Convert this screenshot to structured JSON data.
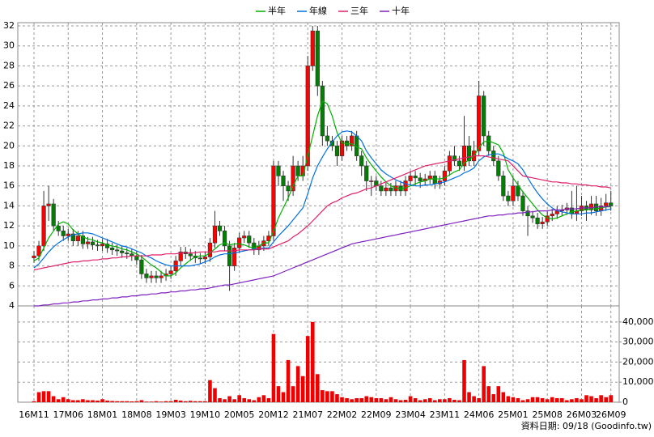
{
  "chart_data": {
    "type": "candlestick",
    "categories": [
      "16M11",
      null,
      null,
      null,
      null,
      null,
      null,
      "17M06",
      null,
      null,
      null,
      null,
      null,
      null,
      "18M01",
      null,
      null,
      null,
      null,
      null,
      null,
      "18M08",
      null,
      null,
      null,
      null,
      null,
      null,
      "19M03",
      null,
      null,
      null,
      null,
      null,
      null,
      "19M10",
      null,
      null,
      null,
      null,
      null,
      null,
      "20M05",
      null,
      null,
      null,
      null,
      null,
      null,
      "20M12",
      null,
      null,
      null,
      null,
      null,
      null,
      "21M07",
      null,
      null,
      null,
      null,
      null,
      null,
      "22M02",
      null,
      null,
      null,
      null,
      null,
      null,
      "22M09",
      null,
      null,
      null,
      null,
      null,
      null,
      "23M04",
      null,
      null,
      null,
      null,
      null,
      null,
      "23M11",
      null,
      null,
      null,
      null,
      null,
      null,
      "24M06",
      null,
      null,
      null,
      null,
      null,
      null,
      "25M01",
      null,
      null,
      null,
      null,
      null,
      null,
      "25M08",
      null,
      null,
      null,
      null,
      null,
      null,
      "26M03",
      null,
      null,
      null,
      null,
      null,
      "26M09"
    ],
    "open": [
      8.8,
      9,
      10,
      14,
      14.2,
      12,
      11.5,
      11,
      11.2,
      10.5,
      11,
      10.2,
      10.4,
      10.1,
      10,
      10.2,
      9.8,
      9.6,
      9.5,
      9.3,
      9.2,
      9,
      8.6,
      7.2,
      6.8,
      7,
      6.8,
      7,
      7.2,
      7.5,
      8.5,
      9.4,
      9.2,
      9,
      8.8,
      8.7,
      8.9,
      10.3,
      12,
      11.5,
      10,
      8,
      9.8,
      10.8,
      11,
      10.3,
      9.6,
      10,
      10.5,
      11,
      18,
      17,
      16,
      15.5,
      18,
      17,
      18,
      28,
      31.5,
      26,
      21,
      20.5,
      20,
      19,
      20.5,
      20,
      21,
      19,
      18,
      16.5,
      16.5,
      16,
      15.5,
      15.8,
      15.5,
      16,
      15.5,
      16.5,
      17,
      16.8,
      16.5,
      16.7,
      17,
      16.2,
      16.5,
      17.5,
      19,
      18.5,
      18,
      20,
      18.5,
      19.5,
      25,
      21,
      19.5,
      18.5,
      17,
      15,
      14.5,
      16,
      15,
      13.5,
      13,
      12.8,
      12.2,
      12.4,
      13,
      13.2,
      13.5,
      13.6,
      13.8,
      13.2,
      13.5,
      14,
      13.6,
      14.2,
      13.5,
      14,
      14.3
    ],
    "high": [
      9.5,
      10.5,
      15.5,
      16,
      14.7,
      12.5,
      12,
      11.7,
      11.7,
      11.5,
      11.5,
      10.9,
      10.9,
      10.6,
      10.7,
      10.7,
      10.3,
      10.1,
      10,
      9.8,
      9.7,
      9.5,
      9.1,
      7.7,
      7.5,
      7.5,
      7.5,
      7.7,
      8,
      9,
      9.9,
      9.9,
      9.7,
      9.5,
      9.3,
      9.4,
      10.8,
      13.5,
      12.5,
      12,
      10.5,
      10.3,
      11.3,
      11.5,
      11.5,
      10.8,
      10.5,
      11,
      11.5,
      18.5,
      18.5,
      17.5,
      16.5,
      19,
      18.5,
      19,
      29,
      32,
      32,
      26.5,
      22,
      21,
      20.5,
      21,
      21,
      21.5,
      21.5,
      19.5,
      18.5,
      17,
      17,
      16.5,
      16.3,
      16.3,
      16.5,
      16.5,
      17,
      17.5,
      17.5,
      17.3,
      17.2,
      17.5,
      17.5,
      17,
      18,
      19.5,
      20,
      19,
      23,
      21,
      20.5,
      26.5,
      25.5,
      21.5,
      20,
      19,
      17.5,
      15.5,
      17,
      16.5,
      15.5,
      14,
      13.5,
      13.3,
      12.9,
      13.5,
      13.7,
      14,
      14.1,
      14.3,
      15.5,
      16,
      15,
      14.5,
      15,
      15,
      14.8,
      15.2,
      15.5
    ],
    "low": [
      8.3,
      8.5,
      9.5,
      12.5,
      11.5,
      11,
      10.5,
      10.5,
      10,
      10,
      9.7,
      9.7,
      9.6,
      9.5,
      9.5,
      9.3,
      9.1,
      9,
      8.8,
      8.7,
      8.5,
      8.1,
      6.7,
      6.3,
      6.3,
      6.3,
      6.3,
      6.5,
      6.7,
      7,
      8,
      8.7,
      8.5,
      8.3,
      8.2,
      8.2,
      8.4,
      9.8,
      11,
      9.5,
      5.5,
      7.5,
      9.3,
      10.3,
      9.8,
      9.1,
      9.1,
      9.5,
      10,
      10.5,
      16,
      14.5,
      14.5,
      15,
      16.5,
      16.5,
      17.5,
      27.5,
      25,
      20,
      20,
      19.5,
      18,
      18.5,
      19.5,
      19.5,
      18.5,
      17,
      15.5,
      15,
      15.5,
      15,
      15,
      15,
      15,
      15,
      15,
      16,
      16,
      15.8,
      16,
      16.2,
      15.7,
      15.7,
      16,
      17,
      18,
      17.5,
      17.5,
      18,
      18,
      19,
      20,
      19,
      18,
      16.5,
      14.5,
      14,
      14,
      14.5,
      13,
      11,
      12.3,
      11.7,
      11.7,
      12,
      12.5,
      12.7,
      13,
      13.1,
      12.7,
      12.5,
      13,
      12.5,
      13.1,
      13,
      13,
      13.5,
      13.5
    ],
    "close": [
      9,
      10,
      14,
      14.2,
      12,
      11.5,
      11,
      11.2,
      10.5,
      11,
      10.2,
      10.4,
      10.1,
      10,
      10.2,
      9.8,
      9.6,
      9.5,
      9.3,
      9.2,
      9,
      8.6,
      7.2,
      6.8,
      7,
      6.8,
      7,
      7.2,
      7.5,
      8.5,
      9.4,
      9.2,
      9,
      8.8,
      8.7,
      8.9,
      10.3,
      12,
      11.5,
      10,
      8,
      9.8,
      10.8,
      11,
      10.3,
      9.6,
      10,
      10.5,
      11,
      18,
      17,
      16,
      15.5,
      18,
      17,
      18,
      28,
      31.5,
      26,
      21,
      20.5,
      20,
      19,
      20.5,
      20,
      21,
      19,
      18,
      16.5,
      16.5,
      16,
      15.5,
      15.8,
      15.5,
      16,
      15.5,
      16.5,
      17,
      16.8,
      16.5,
      16.7,
      17,
      16.2,
      16.5,
      17.5,
      19,
      18.5,
      18,
      20,
      18.5,
      19.5,
      25,
      21,
      19.5,
      18.5,
      17,
      15,
      14.5,
      16,
      15,
      13.5,
      13,
      12.8,
      12.2,
      12.4,
      13,
      13.2,
      13.5,
      13.6,
      13.8,
      13.2,
      13.5,
      14,
      13.6,
      14.2,
      13.5,
      14,
      14.3,
      14
    ],
    "up_color": "#ff0000",
    "down_color": "#008000",
    "series": [
      {
        "name": "半年",
        "color": "#00b000",
        "values": [
          8.5,
          8.8,
          9.8,
          10.8,
          11.5,
          12.2,
          12.4,
          12.2,
          11.6,
          11.2,
          10.9,
          10.7,
          10.6,
          10.4,
          10.3,
          10.1,
          10.0,
          9.9,
          9.7,
          9.6,
          9.4,
          9.2,
          8.9,
          8.5,
          8.1,
          7.8,
          7.4,
          7.0,
          7.0,
          7.3,
          7.8,
          8.2,
          8.6,
          8.9,
          9.0,
          9.0,
          9.3,
          9.7,
          10.1,
          10.3,
          10.1,
          10.2,
          10.2,
          10.1,
          9.9,
          9.8,
          10.0,
          10.3,
          10.3,
          11.5,
          12.8,
          13.8,
          14.8,
          16.0,
          17.0,
          17.0,
          19.0,
          21.0,
          23.0,
          24.5,
          24.2,
          23.0,
          21.3,
          20.3,
          20.2,
          20.2,
          19.9,
          19.7,
          18.8,
          18.1,
          17.5,
          16.9,
          16.4,
          16.0,
          15.8,
          15.7,
          15.8,
          16.0,
          16.2,
          16.4,
          16.5,
          16.7,
          16.7,
          16.7,
          16.8,
          17.1,
          17.4,
          17.6,
          18.3,
          18.6,
          19.0,
          19.8,
          20.4,
          20.5,
          20.3,
          20.1,
          19.3,
          17.6,
          16.8,
          16.1,
          15.4,
          14.8,
          14.2,
          13.6,
          13.1,
          12.8,
          12.7,
          12.8,
          13.0,
          13.2,
          13.4,
          13.5,
          13.6,
          13.6,
          13.7,
          13.7,
          13.8,
          13.9,
          13.9
        ]
      },
      {
        "name": "年線",
        "color": "#0070e0",
        "values": [
          7.8,
          8.2,
          8.8,
          9.4,
          9.9,
          10.3,
          10.6,
          10.9,
          11.1,
          11.2,
          11.3,
          11.3,
          11.2,
          11.0,
          10.8,
          10.6,
          10.4,
          10.2,
          10.0,
          9.9,
          9.7,
          9.5,
          9.3,
          9.0,
          8.8,
          8.5,
          8.3,
          8.1,
          8.0,
          8.0,
          8.0,
          8.0,
          8.0,
          8.1,
          8.2,
          8.4,
          8.6,
          8.9,
          9.1,
          9.2,
          9.2,
          9.3,
          9.4,
          9.5,
          9.6,
          9.7,
          9.7,
          9.8,
          9.8,
          10.4,
          11.0,
          11.5,
          12.0,
          12.6,
          13.2,
          13.8,
          15.2,
          16.8,
          18.0,
          18.9,
          19.7,
          20.4,
          21.0,
          21.4,
          21.5,
          21.4,
          21.0,
          20.5,
          19.5,
          18.8,
          18.2,
          17.6,
          17.2,
          16.9,
          16.6,
          16.4,
          16.2,
          16.1,
          16.0,
          16.0,
          16.1,
          16.1,
          16.2,
          16.3,
          16.4,
          16.6,
          16.8,
          17.0,
          17.3,
          17.5,
          17.8,
          18.5,
          18.9,
          19.1,
          19.2,
          19.2,
          19.0,
          18.7,
          18.5,
          18.2,
          17.6,
          16.8,
          16.0,
          15.3,
          14.7,
          14.2,
          13.8,
          13.5,
          13.4,
          13.3,
          13.2,
          13.2,
          13.2,
          13.3,
          13.3,
          13.4,
          13.5,
          13.6,
          13.7
        ]
      },
      {
        "name": "三年",
        "color": "#e0206a",
        "values": [
          7.6,
          7.7,
          7.8,
          7.9,
          8.0,
          8.1,
          8.2,
          8.3,
          8.4,
          8.4,
          8.5,
          8.5,
          8.6,
          8.6,
          8.7,
          8.7,
          8.8,
          8.8,
          8.9,
          8.9,
          9.0,
          9.0,
          9.0,
          9.0,
          9.1,
          9.1,
          9.1,
          9.2,
          9.2,
          9.2,
          9.3,
          9.3,
          9.3,
          9.3,
          9.4,
          9.4,
          9.4,
          9.4,
          9.5,
          9.5,
          9.5,
          9.5,
          9.6,
          9.6,
          9.6,
          9.6,
          9.7,
          9.7,
          9.7,
          9.9,
          10.1,
          10.3,
          10.5,
          10.9,
          11.2,
          11.6,
          12.0,
          12.5,
          13.0,
          13.5,
          14.0,
          14.3,
          14.5,
          14.8,
          15.0,
          15.2,
          15.3,
          15.5,
          15.7,
          15.8,
          16.0,
          16.2,
          16.4,
          16.6,
          16.8,
          17.0,
          17.2,
          17.4,
          17.6,
          17.8,
          18.0,
          18.1,
          18.2,
          18.3,
          18.4,
          18.5,
          18.6,
          18.7,
          18.8,
          18.9,
          19.0,
          19.0,
          19.0,
          18.9,
          18.8,
          18.7,
          18.6,
          18.5,
          18.0,
          17.5,
          17.0,
          16.9,
          16.8,
          16.7,
          16.6,
          16.5,
          16.4,
          16.4,
          16.3,
          16.3,
          16.2,
          16.2,
          16.1,
          16.1,
          16.0,
          16.0,
          15.9,
          15.9,
          15.8
        ]
      },
      {
        "name": "十年",
        "color": "#8020c0",
        "values": [
          4.0,
          4.0,
          4.1,
          4.1,
          4.2,
          4.2,
          4.3,
          4.3,
          4.4,
          4.4,
          4.5,
          4.5,
          4.6,
          4.6,
          4.7,
          4.7,
          4.8,
          4.8,
          4.9,
          4.9,
          5.0,
          5.0,
          5.1,
          5.1,
          5.2,
          5.2,
          5.3,
          5.3,
          5.4,
          5.4,
          5.5,
          5.5,
          5.6,
          5.6,
          5.7,
          5.7,
          5.8,
          5.9,
          6.0,
          6.1,
          6.1,
          6.2,
          6.3,
          6.4,
          6.5,
          6.6,
          6.7,
          6.8,
          6.9,
          7.0,
          7.2,
          7.4,
          7.6,
          7.8,
          8.0,
          8.2,
          8.4,
          8.6,
          8.8,
          9.0,
          9.2,
          9.4,
          9.6,
          9.8,
          10.0,
          10.2,
          10.3,
          10.4,
          10.5,
          10.6,
          10.7,
          10.8,
          10.9,
          11.0,
          11.1,
          11.2,
          11.3,
          11.4,
          11.5,
          11.6,
          11.7,
          11.8,
          11.9,
          12.0,
          12.1,
          12.2,
          12.3,
          12.4,
          12.5,
          12.6,
          12.7,
          12.8,
          12.9,
          13.0,
          13.0,
          13.1,
          13.1,
          13.2,
          13.2,
          13.3,
          13.3,
          13.4,
          13.4,
          13.5,
          13.5,
          13.5,
          13.6,
          13.6,
          13.6,
          13.7,
          13.7,
          13.7,
          13.8,
          13.8,
          13.8,
          13.9,
          13.9,
          13.9,
          14.0
        ]
      }
    ],
    "ylim": [
      4,
      32
    ],
    "yticks": [
      4,
      6,
      8,
      10,
      12,
      14,
      16,
      18,
      20,
      22,
      24,
      26,
      28,
      30,
      32
    ],
    "grid": true,
    "volume": {
      "color": "#ee0000",
      "values": [
        500,
        5000,
        5500,
        5500,
        3000,
        1500,
        2500,
        1500,
        1000,
        1000,
        1500,
        1000,
        1000,
        800,
        1500,
        800,
        600,
        500,
        500,
        500,
        400,
        500,
        1000,
        300,
        300,
        500,
        300,
        500,
        500,
        1200,
        800,
        500,
        700,
        500,
        500,
        500,
        11000,
        7000,
        2000,
        1500,
        3000,
        1500,
        3500,
        2000,
        1500,
        1000,
        2500,
        3500,
        2000,
        34000,
        8000,
        5000,
        21000,
        8000,
        18000,
        13000,
        33000,
        40000,
        14000,
        6000,
        5500,
        5500,
        4000,
        2500,
        2000,
        1500,
        2000,
        2000,
        3000,
        2500,
        2000,
        2000,
        1500,
        2500,
        1500,
        1000,
        1200,
        3000,
        2000,
        1000,
        1500,
        2000,
        1000,
        1500,
        1500,
        2000,
        1200,
        1000,
        21000,
        5000,
        3000,
        2000,
        18000,
        8000,
        4000,
        8000,
        5000,
        3000,
        2500,
        2000,
        1000,
        1500,
        2500,
        2500,
        2000,
        1500,
        2500,
        2000,
        2000,
        1000,
        1500,
        2000,
        1500,
        3500,
        3000,
        2000,
        3500,
        2500,
        3500
      ],
      "ylim": [
        0,
        48000
      ],
      "yticks": [
        0,
        {
          "value": 10000,
          "label": "10,000"
        },
        {
          "value": 20000,
          "label": "20,000"
        },
        {
          "value": 30000,
          "label": "30,000"
        },
        {
          "value": 40000,
          "label": "40,000"
        }
      ]
    },
    "note": "資料日期: 09/18  (Goodinfo.tw)"
  }
}
